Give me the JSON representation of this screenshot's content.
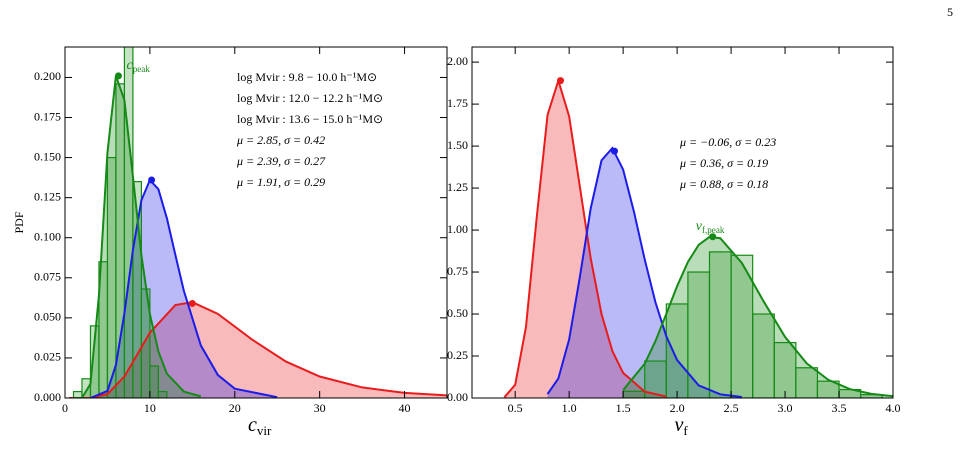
{
  "page_number": "5",
  "chart_data": [
    {
      "type": "area",
      "ylabel": "PDF",
      "xlabel": {
        "main": "c",
        "sub": "vir"
      },
      "xlim": [
        0,
        45
      ],
      "ylim": [
        0,
        0.219
      ],
      "xticks": [
        0,
        10,
        20,
        30,
        40
      ],
      "yticks": [
        {
          "value": 0,
          "label": "0.000"
        },
        0.025,
        {
          "value": 0.05,
          "label": "0.050"
        },
        0.075,
        {
          "value": 0.1,
          "label": "0.100"
        },
        0.125,
        {
          "value": 0.15,
          "label": "0.150"
        },
        0.175,
        {
          "value": 0.2,
          "label": "0.200"
        }
      ],
      "series": [
        {
          "name": "log Mvir : 9.8 − 10.0 h⁻¹M⊙",
          "color": "#e81c1c",
          "x": [
            0.5,
            3,
            5,
            7,
            10,
            13,
            15,
            18,
            22,
            26,
            30,
            35,
            40,
            45
          ],
          "values": [
            0,
            0.0001,
            0.0024,
            0.0134,
            0.0407,
            0.058,
            0.0598,
            0.0525,
            0.0366,
            0.0228,
            0.0134,
            0.0066,
            0.0032,
            0.0016
          ]
        },
        {
          "name": "log Mvir : 12.0 − 12.2 h⁻¹M⊙",
          "color": "#1c1ce8",
          "x": [
            3,
            5,
            6,
            7,
            8,
            9,
            10,
            11,
            12,
            13,
            14,
            16,
            18,
            20,
            25
          ],
          "values": [
            0,
            0.0044,
            0.0206,
            0.053,
            0.0922,
            0.1234,
            0.136,
            0.1303,
            0.1122,
            0.0893,
            0.0669,
            0.0328,
            0.0144,
            0.0058,
            0.0005
          ]
        },
        {
          "name": "log Mvir : 13.6 − 15.0 h⁻¹M⊙",
          "color": "#168a16",
          "x": [
            1,
            2,
            3,
            4,
            5,
            6,
            7,
            8,
            9,
            10,
            11,
            12,
            14,
            16
          ],
          "values": [
            0,
            0.0001,
            0.0088,
            0.0641,
            0.1531,
            0.2011,
            0.1858,
            0.1383,
            0.0892,
            0.0524,
            0.029,
            0.0152,
            0.004,
            0.001
          ]
        }
      ],
      "histogram": {
        "color": "#168a16",
        "bins": [
          1,
          2,
          3,
          4,
          5,
          6,
          7,
          8,
          9,
          10,
          11,
          12
        ],
        "counts": [
          0.004,
          0.012,
          0.045,
          0.085,
          0.15,
          0.196,
          0.22,
          0.135,
          0.068,
          0.02,
          0.004
        ]
      },
      "peak": {
        "label": {
          "main": "c",
          "sub": "peak"
        },
        "x": [
          15,
          10.2,
          6.3
        ],
        "values": [
          0.059,
          0.136,
          0.201
        ]
      },
      "annotations": [
        {
          "text": "μ = 2.85, σ = 0.42",
          "color": "#e81c1c"
        },
        {
          "text": "μ = 2.39, σ = 0.27",
          "color": "#1c1ce8"
        },
        {
          "text": "μ = 1.91, σ = 0.29",
          "color": "#168a16"
        }
      ]
    },
    {
      "type": "area",
      "xlabel": {
        "main": "ν",
        "sub": "f"
      },
      "xlim": [
        0.1,
        4.0
      ],
      "ylim": [
        0,
        2.09
      ],
      "xticks": [
        0.5,
        {
          "value": 1,
          "label": "1.0"
        },
        1.5,
        {
          "value": 2,
          "label": "2.0"
        },
        2.5,
        {
          "value": 3,
          "label": "3.0"
        },
        3.5,
        {
          "value": 4,
          "label": "4.0"
        }
      ],
      "yticks": [
        {
          "value": 0,
          "label": "0.00"
        },
        0.25,
        {
          "value": 0.5,
          "label": "0.50"
        },
        0.75,
        {
          "value": 1,
          "label": "1.00"
        },
        1.25,
        {
          "value": 1.5,
          "label": "1.50"
        },
        1.75,
        {
          "value": 2,
          "label": "2.00"
        }
      ],
      "series": [
        {
          "color": "#e81c1c",
          "x": [
            0.4,
            0.5,
            0.6,
            0.7,
            0.8,
            0.9,
            1.0,
            1.1,
            1.2,
            1.3,
            1.4,
            1.5,
            1.7,
            1.9
          ],
          "values": [
            0.0042,
            0.0785,
            0.4235,
            1.078,
            1.686,
            1.89,
            1.677,
            1.255,
            0.83,
            0.4997,
            0.2804,
            0.1492,
            0.0378,
            0.0087
          ]
        },
        {
          "color": "#1c1ce8",
          "x": [
            0.8,
            0.9,
            1.0,
            1.1,
            1.2,
            1.3,
            1.4,
            1.5,
            1.6,
            1.7,
            1.8,
            1.9,
            2.0,
            2.2,
            2.4,
            2.6
          ],
          "values": [
            0.0236,
            0.1162,
            0.3488,
            0.7232,
            1.13,
            1.415,
            1.488,
            1.36,
            1.11,
            0.825,
            0.5686,
            0.3676,
            0.2258,
            0.075,
            0.022,
            0.006
          ]
        },
        {
          "color": "#168a16",
          "x": [
            1.5,
            1.7,
            1.8,
            1.9,
            2.0,
            2.1,
            2.2,
            2.3,
            2.4,
            2.6,
            2.8,
            3.0,
            3.2,
            3.4,
            3.6,
            3.8,
            4.0
          ],
          "values": [
            0.0472,
            0.2041,
            0.3395,
            0.5009,
            0.6658,
            0.8099,
            0.912,
            0.9592,
            0.9512,
            0.8041,
            0.5772,
            0.364,
            0.2069,
            0.1084,
            0.053,
            0.0246,
            0.0109
          ]
        }
      ],
      "histogram": {
        "color": "#168a16",
        "bins": [
          1.5,
          1.7,
          1.9,
          2.1,
          2.3,
          2.5,
          2.7,
          2.9,
          3.1,
          3.3,
          3.5,
          3.7,
          3.9
        ],
        "counts": [
          0.04,
          0.22,
          0.56,
          0.75,
          0.87,
          0.85,
          0.5,
          0.33,
          0.18,
          0.1,
          0.05,
          0.02
        ]
      },
      "peak": {
        "label": {
          "main": "ν",
          "sub": "f,peak"
        },
        "x": [
          0.92,
          1.42,
          2.33
        ],
        "values": [
          1.89,
          1.47,
          0.96
        ]
      },
      "annotations": [
        {
          "text": "μ = −0.06, σ = 0.23",
          "color": "#e81c1c"
        },
        {
          "text": "μ = 0.36, σ = 0.19",
          "color": "#1c1ce8"
        },
        {
          "text": "μ = 0.88, σ = 0.18",
          "color": "#168a16"
        }
      ]
    }
  ]
}
